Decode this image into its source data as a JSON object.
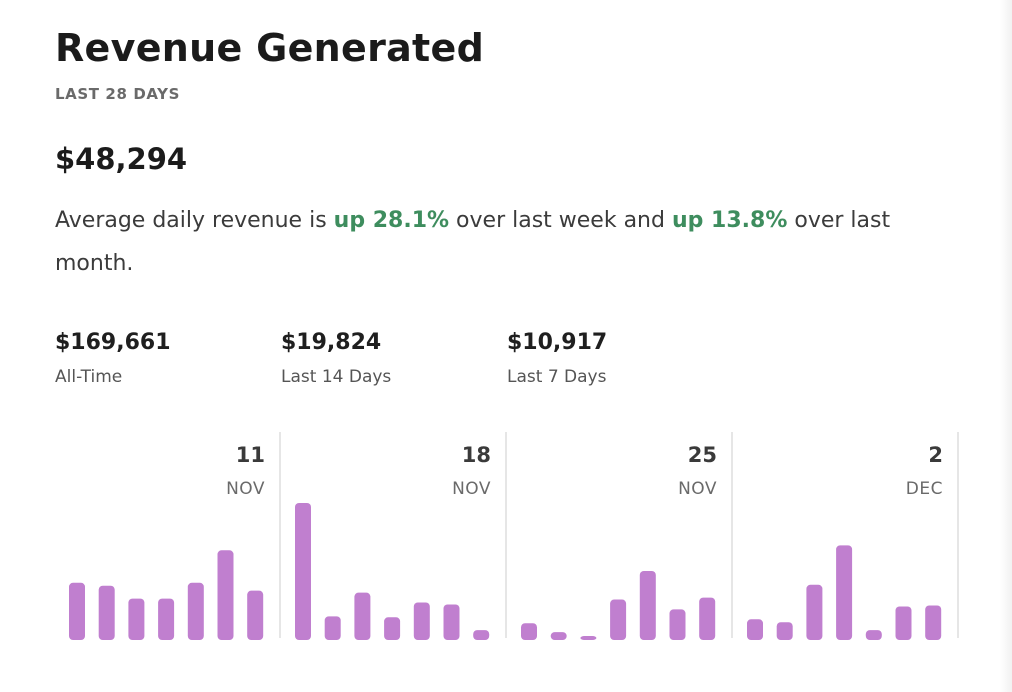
{
  "card": {
    "title": "Revenue Generated",
    "subtitle": "LAST 28 DAYS",
    "total": "$48,294",
    "summary": {
      "prefix": "Average daily revenue is ",
      "change_week": "up 28.1%",
      "middle": " over last week and ",
      "change_month": "up 13.8%",
      "suffix": " over last month."
    },
    "stats": [
      {
        "value": "$169,661",
        "label": "All-Time"
      },
      {
        "value": "$19,824",
        "label": "Last 14 Days"
      },
      {
        "value": "$10,917",
        "label": "Last 7 Days"
      }
    ]
  },
  "colors": {
    "bar": "#c07fcf",
    "positive": "#3e8d5e"
  },
  "chart_data": {
    "type": "bar",
    "title": "",
    "xlabel": "",
    "ylabel": "",
    "week_ticks": [
      {
        "day": "11",
        "month": "NOV"
      },
      {
        "day": "18",
        "month": "NOV"
      },
      {
        "day": "25",
        "month": "NOV"
      },
      {
        "day": "2",
        "month": "DEC"
      }
    ],
    "values": [
      56,
      53,
      40,
      40,
      56,
      89,
      48,
      137,
      22,
      46,
      21,
      36,
      34,
      8,
      15,
      6,
      1,
      39,
      68,
      29,
      41,
      19,
      16,
      54,
      94,
      8,
      32,
      33
    ],
    "ylim": [
      0,
      140
    ]
  }
}
